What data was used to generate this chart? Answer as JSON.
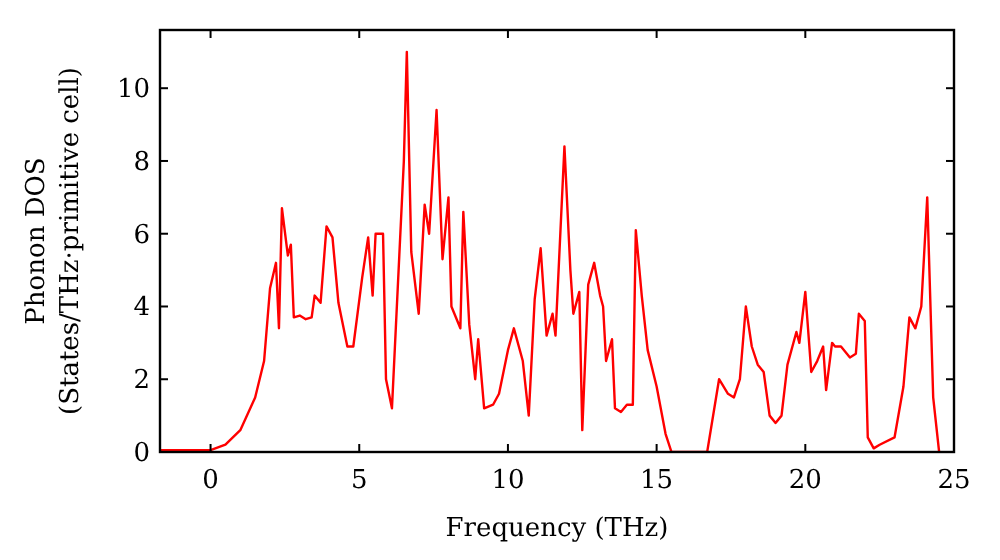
{
  "chart_data": {
    "type": "line",
    "xlabel": "Frequency (THz)",
    "ylabel": "Phonon DOS\n(States/THz·primitive cell)",
    "xlim": [
      -1.7,
      25
    ],
    "ylim": [
      0,
      11.6
    ],
    "xticks": [
      0,
      5,
      10,
      15,
      20,
      25
    ],
    "yticks": [
      0,
      2,
      4,
      6,
      8,
      10
    ],
    "marker": "none",
    "line_style": "solid",
    "series": [
      {
        "color": "#ff0000",
        "x": [
          -1.7,
          0,
          0.5,
          1,
          1.5,
          1.8,
          2.0,
          2.2,
          2.3,
          2.4,
          2.6,
          2.7,
          2.8,
          3.0,
          3.2,
          3.4,
          3.5,
          3.7,
          3.9,
          4.1,
          4.3,
          4.6,
          4.8,
          5.1,
          5.3,
          5.45,
          5.55,
          5.8,
          5.9,
          6.1,
          6.5,
          6.6,
          6.75,
          7.0,
          7.2,
          7.35,
          7.6,
          7.8,
          8.0,
          8.1,
          8.4,
          8.5,
          8.7,
          8.9,
          9.0,
          9.2,
          9.5,
          9.7,
          10.0,
          10.2,
          10.5,
          10.7,
          10.9,
          11.1,
          11.3,
          11.5,
          11.6,
          11.9,
          12.1,
          12.2,
          12.4,
          12.5,
          12.7,
          12.9,
          13.1,
          13.2,
          13.3,
          13.5,
          13.6,
          13.8,
          14.0,
          14.2,
          14.3,
          14.5,
          14.7,
          15.0,
          15.3,
          15.5,
          16.5,
          16.7,
          17.1,
          17.4,
          17.6,
          17.8,
          18.0,
          18.2,
          18.4,
          18.6,
          18.8,
          19.0,
          19.2,
          19.4,
          19.7,
          19.8,
          20.0,
          20.2,
          20.4,
          20.6,
          20.7,
          20.9,
          21.0,
          21.2,
          21.5,
          21.7,
          21.8,
          22.0,
          22.1,
          22.3,
          22.5,
          23.0,
          23.3,
          23.5,
          23.7,
          23.9,
          24.1,
          24.3,
          24.5
        ],
        "values": [
          0.05,
          0.05,
          0.2,
          0.6,
          1.5,
          2.5,
          4.5,
          5.2,
          3.4,
          6.7,
          5.4,
          5.7,
          3.7,
          3.75,
          3.65,
          3.7,
          4.3,
          4.1,
          6.2,
          5.9,
          4.1,
          2.9,
          2.9,
          4.8,
          5.9,
          4.3,
          6.0,
          6.0,
          2.0,
          1.2,
          8.0,
          11.0,
          5.5,
          3.8,
          6.8,
          6.0,
          9.4,
          5.3,
          7.0,
          4.0,
          3.4,
          6.6,
          3.5,
          2.0,
          3.1,
          1.2,
          1.3,
          1.6,
          2.8,
          3.4,
          2.5,
          1.0,
          4.2,
          5.6,
          3.2,
          3.8,
          3.2,
          8.4,
          5.0,
          3.8,
          4.4,
          0.6,
          4.6,
          5.2,
          4.3,
          4.0,
          2.5,
          3.1,
          1.2,
          1.1,
          1.3,
          1.3,
          6.1,
          4.3,
          2.8,
          1.8,
          0.5,
          0,
          0,
          0,
          2.0,
          1.6,
          1.5,
          2.0,
          4.0,
          2.9,
          2.4,
          2.2,
          1.0,
          0.8,
          1.0,
          2.4,
          3.3,
          3.0,
          4.4,
          2.2,
          2.5,
          2.9,
          1.7,
          3.0,
          2.9,
          2.9,
          2.6,
          2.7,
          3.8,
          3.6,
          0.4,
          0.1,
          0.2,
          0.4,
          1.8,
          3.7,
          3.4,
          4.0,
          7.0,
          1.5,
          0
        ]
      }
    ]
  }
}
